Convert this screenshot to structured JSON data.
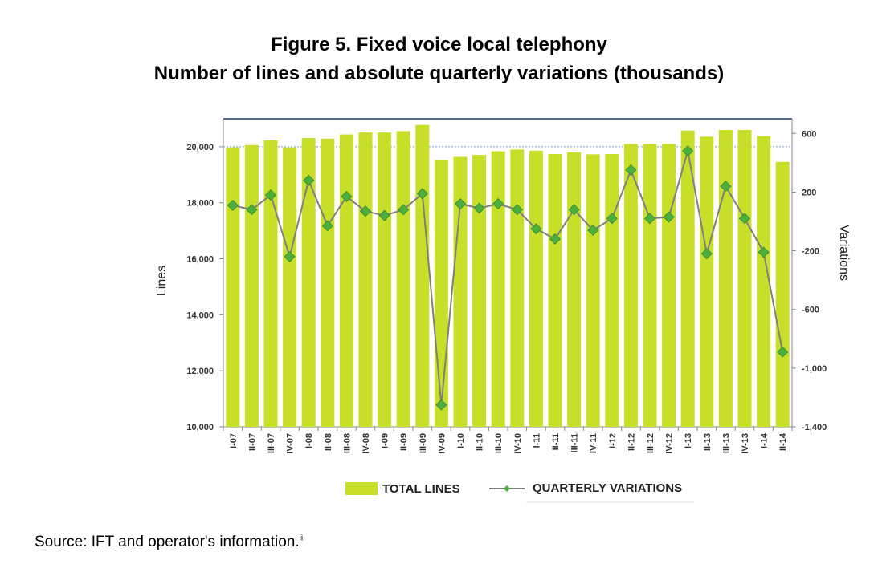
{
  "title_line1": "Figure 5. Fixed voice local telephony",
  "title_line2": "Number of lines and absolute quarterly variations (thousands)",
  "source": "Source: IFT and operator's information.",
  "source_note": "ii",
  "colors": {
    "bar": "#c8df2a",
    "line": "#7f7f7f",
    "marker": "#4caf3c",
    "frame": "#1f3a6b"
  },
  "chart_data": {
    "type": "bar",
    "categories": [
      "I-07",
      "II-07",
      "III-07",
      "IV-07",
      "I-08",
      "II-08",
      "III-08",
      "IV-08",
      "I-09",
      "II-09",
      "III-09",
      "IV-09",
      "I-10",
      "II-10",
      "III-10",
      "IV-10",
      "I-11",
      "II-11",
      "III-11",
      "IV-11",
      "I-12",
      "II-12",
      "III-12",
      "IV-12",
      "I-13",
      "II-13",
      "III-13",
      "IV-13",
      "I-14",
      "II-14"
    ],
    "series": [
      {
        "name": "TOTAL LINES",
        "type": "bar",
        "axis": "left",
        "values": [
          19980,
          20060,
          20230,
          19980,
          20310,
          20290,
          20440,
          20510,
          20510,
          20560,
          20780,
          19520,
          19640,
          19710,
          19840,
          19900,
          19860,
          19740,
          19800,
          19730,
          19740,
          20100,
          20100,
          20100,
          20580,
          20360,
          20600,
          20600,
          20380,
          19460
        ]
      },
      {
        "name": "QUARTERLY VARIATIONS",
        "type": "line",
        "axis": "right",
        "values": [
          110,
          80,
          180,
          -240,
          280,
          -30,
          170,
          70,
          40,
          80,
          190,
          -1250,
          120,
          90,
          120,
          80,
          -50,
          -120,
          80,
          -60,
          20,
          350,
          20,
          30,
          480,
          -220,
          240,
          20,
          -210,
          -890
        ]
      }
    ],
    "ylabel": "Lines",
    "y2label": "Variations",
    "ylim": [
      10000,
      21000
    ],
    "y_ticks": [
      "10,000",
      "12,000",
      "14,000",
      "16,000",
      "18,000",
      "20,000"
    ],
    "y_tick_values": [
      10000,
      12000,
      14000,
      16000,
      18000,
      20000
    ],
    "y2lim": [
      -1400,
      700
    ],
    "y2_ticks": [
      "-1,400",
      "-1,000",
      "-600",
      "-200",
      "200",
      "600"
    ],
    "y2_tick_values": [
      -1400,
      -1000,
      -600,
      -200,
      200,
      600
    ],
    "reference_line": 20000,
    "legend_position": "bottom"
  }
}
